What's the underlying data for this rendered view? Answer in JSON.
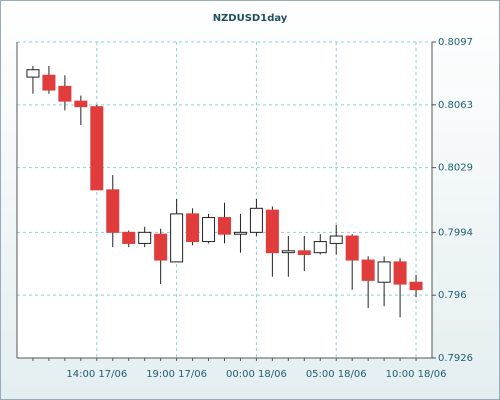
{
  "chart_data": {
    "type": "candlestick",
    "title": "NZDUSD1day",
    "categories": [
      null,
      null,
      null,
      null,
      "14:00 17/06",
      null,
      null,
      null,
      null,
      "19:00 17/06",
      null,
      null,
      null,
      null,
      "00:00 18/06",
      null,
      null,
      null,
      null,
      "05:00 18/06",
      null,
      null,
      null,
      null,
      "10:00 18/06"
    ],
    "open": [
      0.8078,
      0.8079,
      0.8073,
      0.8065,
      0.8062,
      0.8017,
      0.7994,
      0.7988,
      0.7993,
      0.7978,
      0.8004,
      0.7989,
      0.8002,
      0.7993,
      0.7994,
      0.8006,
      0.7983,
      0.7984,
      0.7983,
      0.7988,
      0.7992,
      0.7979,
      0.7967,
      0.7978,
      0.7967
    ],
    "high": [
      0.8084,
      0.8084,
      0.8079,
      0.8068,
      0.8063,
      0.8025,
      0.7995,
      0.7997,
      0.7996,
      0.8012,
      0.8007,
      0.8004,
      0.801,
      0.8004,
      0.8012,
      0.8008,
      0.7992,
      0.7992,
      0.7993,
      0.7998,
      0.7993,
      0.7981,
      0.7981,
      0.798,
      0.7971
    ],
    "low": [
      0.8069,
      0.8069,
      0.806,
      0.8052,
      0.8017,
      0.7986,
      0.7986,
      0.7986,
      0.7966,
      0.7978,
      0.7987,
      0.7988,
      0.7988,
      0.7983,
      0.7992,
      0.797,
      0.797,
      0.7973,
      0.7982,
      0.7982,
      0.7963,
      0.7953,
      0.7954,
      0.7948,
      0.7959
    ],
    "close": [
      0.8082,
      0.8071,
      0.8065,
      0.8062,
      0.8017,
      0.7994,
      0.7988,
      0.7994,
      0.7979,
      0.8004,
      0.7989,
      0.8002,
      0.7993,
      0.7994,
      0.8007,
      0.7983,
      0.7984,
      0.7982,
      0.7989,
      0.7992,
      0.7979,
      0.7968,
      0.7978,
      0.7966,
      0.7963
    ],
    "up_color": "#ffffff",
    "down_color": "#e03c3c",
    "ylim": [
      0.7926,
      0.8097
    ],
    "yticks": [
      0.7926,
      0.796,
      0.7994,
      0.8029,
      0.8063,
      0.8097
    ],
    "grid": true
  }
}
